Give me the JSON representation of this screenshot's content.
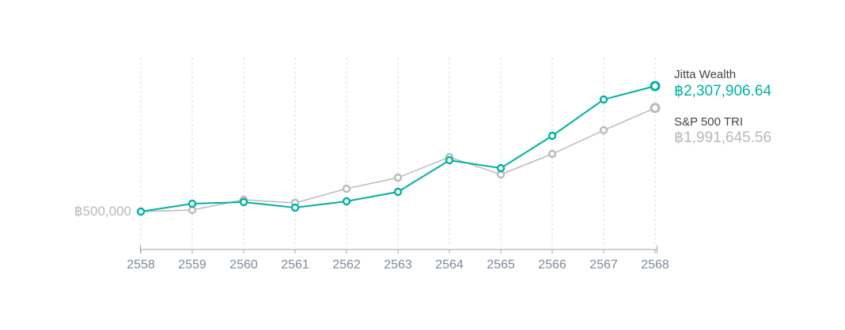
{
  "chart_data": {
    "type": "line",
    "title": "",
    "x": [
      2558,
      2559,
      2560,
      2561,
      2562,
      2563,
      2564,
      2565,
      2566,
      2567,
      2568
    ],
    "series": [
      {
        "name": "Jitta Wealth",
        "color": "#00b2a0",
        "values": [
          500000,
          614000,
          636000,
          557000,
          648000,
          784000,
          1239000,
          1125000,
          1592000,
          2115000,
          2307906.64
        ],
        "final_value_label": "฿2,307,906.64"
      },
      {
        "name": "S&P 500 TRI",
        "color": "#b7bbbe",
        "values": [
          500000,
          523000,
          671000,
          625000,
          830000,
          989000,
          1285000,
          1034000,
          1330000,
          1671000,
          1991645.56
        ],
        "final_value_label": "฿1,991,645.56"
      }
    ],
    "xlabel": "",
    "ylabel": "",
    "y_axis_label": "฿500,000",
    "ylim": [
      450000,
      2450000
    ],
    "grid": "vertical-dashed",
    "legend_position": "right"
  },
  "y_axis": {
    "label": "฿500,000"
  },
  "legend": {
    "jitta": {
      "label": "Jitta Wealth",
      "value": "฿2,307,906.64"
    },
    "sp500": {
      "label": "S&P 500 TRI",
      "value": "฿1,991,645.56"
    }
  },
  "colors": {
    "jitta_line": "#00b2a0",
    "sp500_line": "#b7bbbe",
    "gridline": "#dcdee0",
    "axis": "#9ca4ac",
    "tick_label": "#7e8b98",
    "muted_text": "#b5babf",
    "dark_text": "#3f464c"
  }
}
